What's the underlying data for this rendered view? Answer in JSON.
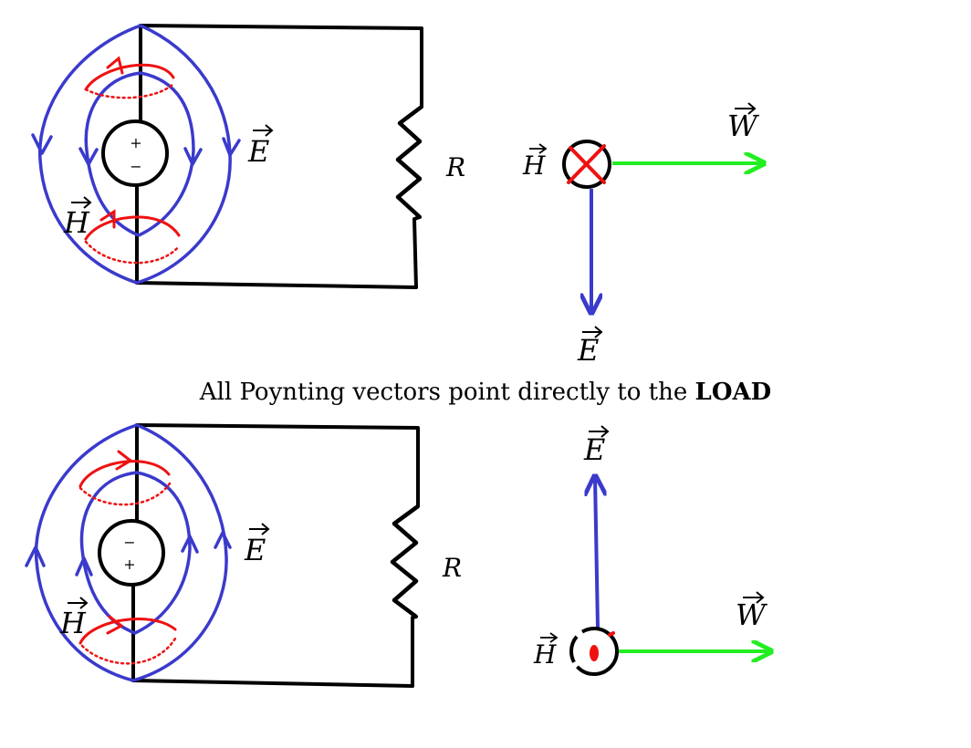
{
  "diagram": {
    "caption_text": "All Poynting vectors point directly to the ",
    "caption_bold": "LOAD",
    "top": {
      "label_E": "E",
      "label_H": "H",
      "label_R": "R",
      "source_top_sign": "+",
      "source_bottom_sign": "−",
      "vector_H": "H",
      "vector_W": "W",
      "vector_E": "E",
      "H_direction": "into page"
    },
    "bottom": {
      "label_E": "E",
      "label_H": "H",
      "label_R": "R",
      "source_top_sign": "−",
      "source_bottom_sign": "+",
      "vector_H": "H",
      "vector_W": "W",
      "vector_E": "E",
      "H_direction": "out of page"
    },
    "colors": {
      "wire": "#000000",
      "E_field": "#3a3acc",
      "H_field": "#ee1111",
      "poynting": "#22ee22"
    }
  }
}
